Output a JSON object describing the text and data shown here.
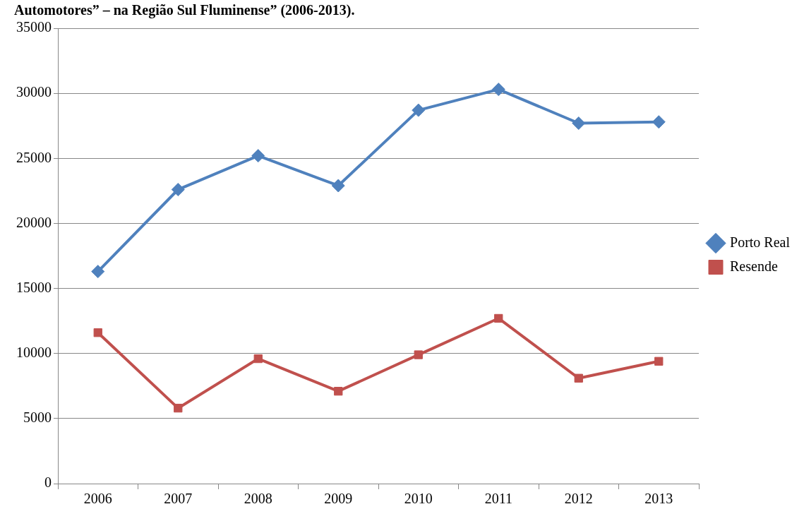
{
  "chart_data": {
    "type": "line",
    "title": "Automotores” – na Região Sul Fluminense” (2006-2013).",
    "categories": [
      "2006",
      "2007",
      "2008",
      "2009",
      "2010",
      "2011",
      "2012",
      "2013"
    ],
    "series": [
      {
        "name": "Porto Real",
        "color": "#4f81bd",
        "marker": "diamond",
        "values": [
          16300,
          22600,
          25200,
          22900,
          28700,
          30300,
          27700,
          27800
        ]
      },
      {
        "name": "Resende",
        "color": "#c0504d",
        "marker": "square",
        "values": [
          11600,
          5800,
          9600,
          7100,
          9900,
          12700,
          8100,
          9400
        ]
      }
    ],
    "ylim": [
      0,
      35000
    ],
    "yticks": [
      0,
      5000,
      10000,
      15000,
      20000,
      25000,
      30000,
      35000
    ],
    "grid": "y",
    "legend": "right",
    "line_style": "solid"
  }
}
